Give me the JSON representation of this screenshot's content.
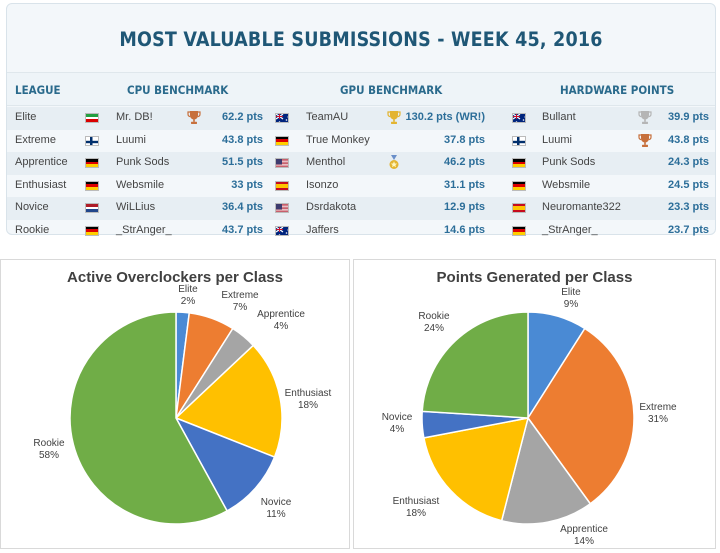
{
  "title": "MOST VALUABLE SUBMISSIONS - WEEK 45, 2016",
  "headers": {
    "league": "LEAGUE",
    "cpu": "CPU BENCHMARK",
    "gpu": "GPU BENCHMARK",
    "hw": "HARDWARE POINTS"
  },
  "colors": {
    "iran": [
      "#239f40",
      "#ffffff",
      "#da0000"
    ],
    "finland": "#002f6c",
    "germany": [
      "#000000",
      "#dd0000",
      "#ffce00"
    ],
    "netherlands": [
      "#ae1c28",
      "#ffffff",
      "#21468b"
    ],
    "spain": [
      "#c60b1e",
      "#ffc400",
      "#c60b1e"
    ],
    "australia": "#00247d",
    "usa_red": "#b22234",
    "usa_blue": "#3c3b6e"
  },
  "rows": [
    {
      "league": "Elite",
      "cpu": {
        "flag": "iran-flag-icon",
        "name": "Mr. DB!",
        "trophy": "bronze-trophy-icon",
        "pts": "62.2 pts"
      },
      "gpu": {
        "flag": "australia-flag-icon",
        "name": "TeamAU",
        "trophy": "gold-trophy-icon",
        "pts": "130.2 pts (WR!)"
      },
      "hw": {
        "flag": "australia-flag-icon",
        "name": "Bullant",
        "trophy": "silver-trophy-icon",
        "pts": "39.9 pts"
      }
    },
    {
      "league": "Extreme",
      "cpu": {
        "flag": "finland-flag-icon",
        "name": "Luumi",
        "trophy": "",
        "pts": "43.8 pts"
      },
      "gpu": {
        "flag": "germany-flag-icon",
        "name": "True Monkey",
        "trophy": "",
        "pts": "37.8 pts"
      },
      "hw": {
        "flag": "finland-flag-icon",
        "name": "Luumi",
        "trophy": "bronze-trophy-icon",
        "pts": "43.8 pts"
      }
    },
    {
      "league": "Apprentice",
      "cpu": {
        "flag": "germany-flag-icon",
        "name": "Punk Sods",
        "trophy": "",
        "pts": "51.5 pts"
      },
      "gpu": {
        "flag": "usa-flag-icon",
        "name": "Menthol",
        "trophy": "star-medal-icon",
        "pts": "46.2 pts"
      },
      "hw": {
        "flag": "germany-flag-icon",
        "name": "Punk Sods",
        "trophy": "",
        "pts": "24.3 pts"
      }
    },
    {
      "league": "Enthusiast",
      "cpu": {
        "flag": "germany-flag-icon",
        "name": "Websmile",
        "trophy": "",
        "pts": "33 pts"
      },
      "gpu": {
        "flag": "spain-flag-icon",
        "name": "Isonzo",
        "trophy": "",
        "pts": "31.1 pts"
      },
      "hw": {
        "flag": "germany-flag-icon",
        "name": "Websmile",
        "trophy": "",
        "pts": "24.5 pts"
      }
    },
    {
      "league": "Novice",
      "cpu": {
        "flag": "netherlands-flag-icon",
        "name": "WiLLius",
        "trophy": "",
        "pts": "36.4 pts"
      },
      "gpu": {
        "flag": "usa-flag-icon",
        "name": "Dsrdakota",
        "trophy": "",
        "pts": "12.9 pts"
      },
      "hw": {
        "flag": "spain-flag-icon",
        "name": "Neuromante322",
        "trophy": "",
        "pts": "23.3 pts"
      }
    },
    {
      "league": "Rookie",
      "cpu": {
        "flag": "germany-flag-icon",
        "name": "_StrAnger_",
        "trophy": "",
        "pts": "43.7 pts"
      },
      "gpu": {
        "flag": "australia-flag-icon",
        "name": "Jaffers",
        "trophy": "",
        "pts": "14.6 pts"
      },
      "hw": {
        "flag": "germany-flag-icon",
        "name": "_StrAnger_",
        "trophy": "",
        "pts": "23.7 pts"
      }
    }
  ],
  "chart_data": [
    {
      "type": "pie",
      "title": "Active Overclockers per Class",
      "categories": [
        "Elite",
        "Extreme",
        "Apprentice",
        "Enthusiast",
        "Novice",
        "Rookie"
      ],
      "values": [
        2,
        7,
        4,
        18,
        11,
        58
      ],
      "labels": [
        "2%",
        "7%",
        "4%",
        "18%",
        "11%",
        "58%"
      ],
      "colors": [
        "#4a8ad4",
        "#ed7d31",
        "#a5a5a5",
        "#ffc000",
        "#4472c4",
        "#70ad47"
      ]
    },
    {
      "type": "pie",
      "title": "Points Generated per Class",
      "categories": [
        "Elite",
        "Extreme",
        "Apprentice",
        "Enthusiast",
        "Novice",
        "Rookie"
      ],
      "values": [
        9,
        31,
        14,
        18,
        4,
        24
      ],
      "labels": [
        "9%",
        "31%",
        "14%",
        "18%",
        "4%",
        "24%"
      ],
      "colors": [
        "#4a8ad4",
        "#ed7d31",
        "#a5a5a5",
        "#ffc000",
        "#4472c4",
        "#70ad47"
      ]
    }
  ]
}
